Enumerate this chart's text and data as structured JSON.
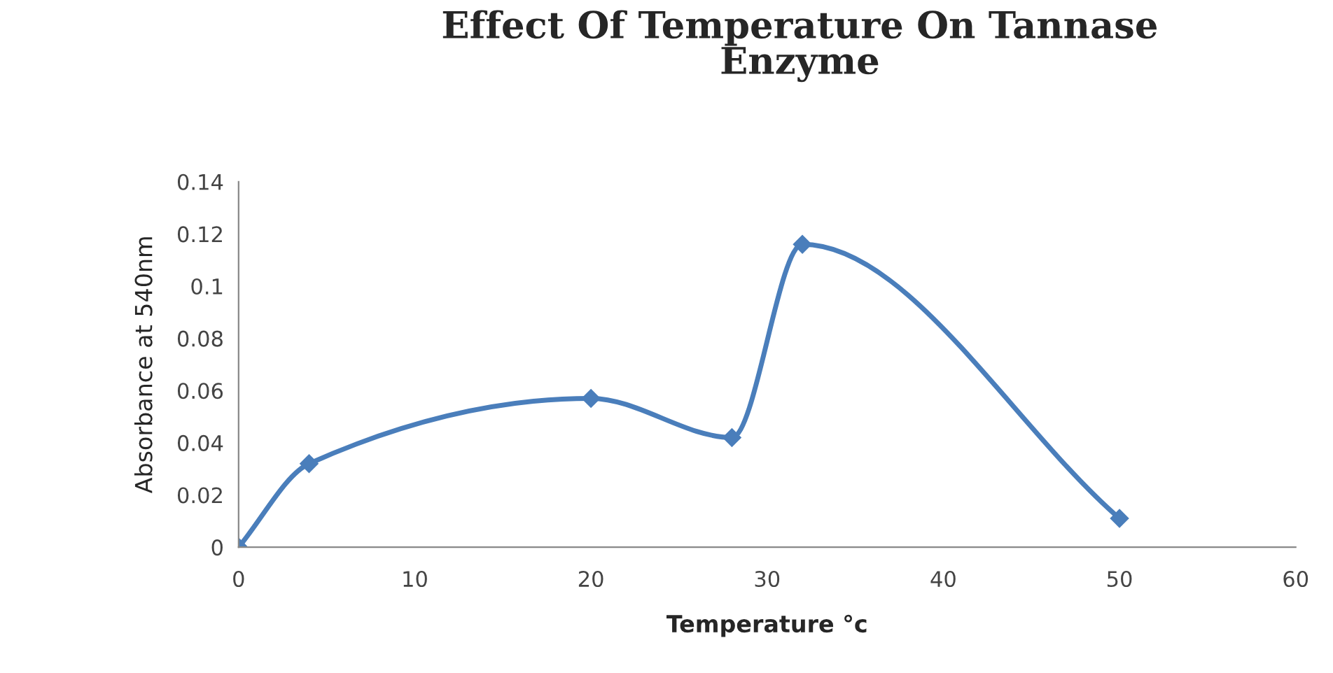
{
  "chart_data": {
    "type": "line",
    "title": "Effect Of Temperature On Tannase\nEnzyme",
    "xlabel": "Temperature °c",
    "ylabel": "Absorbance at 540nm",
    "x": [
      0,
      4,
      20,
      28,
      32,
      50
    ],
    "series": [
      {
        "color": "#4a7ebb",
        "values": [
          0,
          0.032,
          0.057,
          0.042,
          0.116,
          0.011
        ]
      }
    ],
    "xlim": [
      0,
      60
    ],
    "xticks": [
      0,
      10,
      20,
      30,
      40,
      50,
      60
    ],
    "ylim": [
      0,
      0.14
    ],
    "yticks": [
      0,
      0.02,
      0.04,
      0.06,
      0.08,
      0.1,
      0.12,
      0.14
    ],
    "grid": false,
    "legend": false,
    "marker": "diamond",
    "line_style": "solid"
  }
}
